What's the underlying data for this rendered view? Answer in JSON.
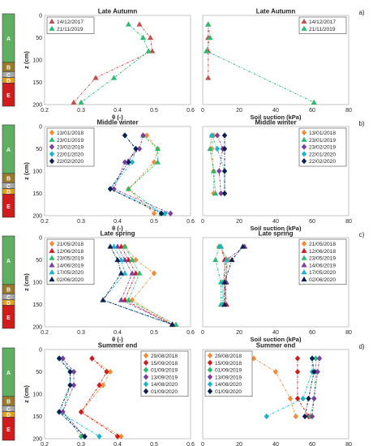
{
  "figure": {
    "soil_columns": [
      {
        "label": "A",
        "color": "#5fae62"
      },
      {
        "label": "B",
        "color": "#9a7a2a"
      },
      {
        "label": "C",
        "color": "#a8a8a8"
      },
      {
        "label": "D",
        "color": "#e6a11a"
      },
      {
        "label": "E",
        "color": "#d01c1c"
      }
    ]
  },
  "chart_data": [
    {
      "type": "scatter",
      "panel": "a",
      "title": "Late Autumn",
      "xlabel": "θ (-)",
      "ylabel": "z (cm)",
      "xlim": [
        0.2,
        0.6
      ],
      "xticks": [
        "0.2",
        "0.3",
        "0.4",
        "0.5",
        "0.6"
      ],
      "ylim": [
        0,
        200
      ],
      "yticks": [
        "0",
        "50",
        "100",
        "150",
        "200"
      ],
      "grid": false,
      "legend": "top-left",
      "series": [
        {
          "name": "14/12/2017",
          "color": "#c0504d",
          "marker": "triangle",
          "x": [
            0.46,
            0.49,
            0.495,
            0.34,
            0.28
          ],
          "y": [
            20,
            50,
            80,
            140,
            195
          ]
        },
        {
          "name": "21/11/2019",
          "color": "#2eb872",
          "marker": "triangle",
          "x": [
            0.43,
            0.47,
            0.485,
            0.39,
            0.3
          ],
          "y": [
            20,
            50,
            80,
            140,
            195
          ]
        }
      ]
    },
    {
      "type": "scatter",
      "panel": "a",
      "title": "Late Autumn",
      "xlabel": "Soil suction (kPa)",
      "panel_label": "a)",
      "xlim": [
        0,
        80
      ],
      "xticks": [
        "0",
        "20",
        "40",
        "60",
        "80"
      ],
      "ylim": [
        0,
        200
      ],
      "grid": false,
      "legend": "top-right",
      "series": [
        {
          "name": "14/12/2017",
          "color": "#c0504d",
          "marker": "triangle",
          "x": [
            3,
            3,
            3,
            3
          ],
          "y": [
            20,
            50,
            80,
            140
          ]
        },
        {
          "name": "21/11/2019",
          "color": "#2eb872",
          "marker": "triangle",
          "x": [
            3,
            4,
            2,
            61
          ],
          "y": [
            20,
            50,
            80,
            195
          ]
        }
      ]
    },
    {
      "type": "scatter",
      "panel": "b",
      "title": "Middle winter",
      "xlabel": "θ (-)",
      "ylabel": "z (cm)",
      "xlim": [
        0.2,
        0.6
      ],
      "xticks": [
        "0.2",
        "0.3",
        "0.4",
        "0.5",
        "0.6"
      ],
      "ylim": [
        0,
        200
      ],
      "yticks": [
        "0",
        "50",
        "100",
        "150",
        "200"
      ],
      "grid": false,
      "legend": "top-left",
      "series": [
        {
          "name": "13/01/2018",
          "color": "#f08c3c",
          "marker": "diamond",
          "x": [
            0.48,
            0.51,
            0.5,
            0.43,
            0.5
          ],
          "y": [
            20,
            50,
            80,
            140,
            195
          ]
        },
        {
          "name": "23/01/2019",
          "color": "#2eb872",
          "marker": "triangle",
          "x": [
            0.47,
            0.51,
            0.51,
            0.43,
            0.52
          ],
          "y": [
            20,
            50,
            80,
            140,
            195
          ]
        },
        {
          "name": "23/02/2019",
          "color": "#7a3fa0",
          "marker": "diamond",
          "x": [
            0.47,
            0.46,
            0.42,
            0.39,
            0.545
          ],
          "y": [
            20,
            50,
            80,
            140,
            195
          ]
        },
        {
          "name": "22/01/2020",
          "color": "#1db3c9",
          "marker": "diamond",
          "x": [
            0.42,
            0.45,
            0.44,
            0.38,
            0.53
          ],
          "y": [
            20,
            50,
            80,
            140,
            195
          ]
        },
        {
          "name": "22/02/2020",
          "color": "#0f2050",
          "marker": "diamond",
          "x": [
            0.42,
            0.45,
            0.43,
            0.38,
            0.52
          ],
          "y": [
            20,
            50,
            80,
            140,
            195
          ]
        }
      ]
    },
    {
      "type": "scatter",
      "panel": "b",
      "title": "Middle winter",
      "xlabel": "Soil suction (kPa)",
      "panel_label": "b)",
      "xlim": [
        0,
        80
      ],
      "xticks": [
        "0",
        "20",
        "40",
        "60",
        "80"
      ],
      "ylim": [
        0,
        200
      ],
      "grid": false,
      "legend": "top-right",
      "series": [
        {
          "name": "13/01/2018",
          "color": "#f08c3c",
          "marker": "diamond",
          "x": [
            6,
            5,
            6,
            6
          ],
          "y": [
            20,
            50,
            100,
            150
          ]
        },
        {
          "name": "23/01/2019",
          "color": "#2eb872",
          "marker": "triangle",
          "x": [
            5,
            4,
            6,
            7
          ],
          "y": [
            20,
            50,
            100,
            150
          ]
        },
        {
          "name": "23/02/2019",
          "color": "#7a3fa0",
          "marker": "diamond",
          "x": [
            8,
            11,
            9,
            10
          ],
          "y": [
            20,
            50,
            100,
            150
          ]
        },
        {
          "name": "22/01/2020",
          "color": "#1db3c9",
          "marker": "diamond",
          "x": [
            5,
            8,
            12,
            12
          ],
          "y": [
            20,
            50,
            100,
            150
          ]
        },
        {
          "name": "22/02/2020",
          "color": "#0f2050",
          "marker": "diamond",
          "x": [
            12,
            12,
            12,
            12
          ],
          "y": [
            20,
            50,
            100,
            150
          ]
        }
      ]
    },
    {
      "type": "scatter",
      "panel": "c",
      "title": "Late spring",
      "xlabel": "θ (-)",
      "ylabel": "z (cm)",
      "xlim": [
        0.2,
        0.6
      ],
      "xticks": [
        "0.2",
        "0.3",
        "0.4",
        "0.5",
        "0.6"
      ],
      "ylim": [
        0,
        200
      ],
      "yticks": [
        "0",
        "50",
        "100",
        "150",
        "200"
      ],
      "grid": false,
      "legend": "top-left",
      "series": [
        {
          "name": "21/05/2018",
          "color": "#f08c3c",
          "marker": "diamond",
          "x": [
            0.42,
            0.45,
            0.5,
            0.44,
            0.55
          ],
          "y": [
            20,
            50,
            80,
            140,
            195
          ]
        },
        {
          "name": "12/06/2018",
          "color": "#d01c1c",
          "marker": "triangle",
          "x": [
            0.41,
            0.43,
            0.45,
            0.42,
            0.55
          ],
          "y": [
            20,
            50,
            80,
            140,
            195
          ]
        },
        {
          "name": "23/05/2019",
          "color": "#2eb872",
          "marker": "triangle",
          "x": [
            0.42,
            0.44,
            0.46,
            0.43,
            0.56
          ],
          "y": [
            20,
            50,
            80,
            140,
            195
          ]
        },
        {
          "name": "14/06/2019",
          "color": "#7a3fa0",
          "marker": "triangle",
          "x": [
            0.4,
            0.42,
            0.44,
            0.41,
            0.55
          ],
          "y": [
            20,
            50,
            80,
            140,
            195
          ]
        },
        {
          "name": "17/05/2020",
          "color": "#1db3c9",
          "marker": "triangle",
          "x": [
            0.39,
            0.41,
            0.42,
            0.36,
            0.55
          ],
          "y": [
            20,
            50,
            80,
            140,
            195
          ]
        },
        {
          "name": "02/06/2020",
          "color": "#0f2050",
          "marker": "triangle",
          "x": [
            0.38,
            0.4,
            0.41,
            0.36,
            0.55
          ],
          "y": [
            20,
            50,
            80,
            140,
            195
          ]
        }
      ]
    },
    {
      "type": "scatter",
      "panel": "c",
      "title": "Late spring",
      "xlabel": "Soil suction (kPa)",
      "panel_label": "c)",
      "xlim": [
        0,
        80
      ],
      "xticks": [
        "0",
        "20",
        "40",
        "60",
        "80"
      ],
      "ylim": [
        0,
        200
      ],
      "grid": false,
      "legend": "top-right",
      "series": [
        {
          "name": "21/05/2018",
          "color": "#f08c3c",
          "marker": "diamond",
          "x": [
            9,
            14,
            12,
            11
          ],
          "y": [
            20,
            50,
            100,
            150
          ]
        },
        {
          "name": "12/06/2018",
          "color": "#d01c1c",
          "marker": "triangle",
          "x": [
            10,
            12,
            12,
            13
          ],
          "y": [
            20,
            50,
            100,
            150
          ]
        },
        {
          "name": "23/05/2019",
          "color": "#2eb872",
          "marker": "triangle",
          "x": [
            9,
            7,
            10,
            10
          ],
          "y": [
            20,
            50,
            100,
            150
          ]
        },
        {
          "name": "14/06/2019",
          "color": "#7a3fa0",
          "marker": "triangle",
          "x": [
            23,
            13,
            13,
            12
          ],
          "y": [
            20,
            50,
            100,
            150
          ]
        },
        {
          "name": "17/05/2020",
          "color": "#1db3c9",
          "marker": "triangle",
          "x": [
            10,
            13,
            11,
            11
          ],
          "y": [
            20,
            50,
            100,
            150
          ]
        },
        {
          "name": "02/06/2020",
          "color": "#0f2050",
          "marker": "triangle",
          "x": [
            22,
            16,
            12,
            12
          ],
          "y": [
            20,
            50,
            100,
            150
          ]
        }
      ]
    },
    {
      "type": "scatter",
      "panel": "d",
      "title": "Summer end",
      "xlabel": "θ (-)",
      "ylabel": "z (cm)",
      "xlim": [
        0.2,
        0.6
      ],
      "xticks": [
        "0.2",
        "0.3",
        "0.4",
        "0.5",
        "0.6"
      ],
      "ylim": [
        0,
        200
      ],
      "yticks": [
        "0",
        "50",
        "100",
        "150",
        "200"
      ],
      "grid": false,
      "legend": "top-right",
      "series": [
        {
          "name": "29/08/2018",
          "color": "#f08c3c",
          "marker": "diamond",
          "x": [
            0.33,
            0.38,
            0.36,
            0.3,
            0.41
          ],
          "y": [
            20,
            50,
            80,
            140,
            195
          ]
        },
        {
          "name": "15/09/2018",
          "color": "#d01c1c",
          "marker": "diamond",
          "x": [
            0.33,
            0.37,
            0.35,
            0.3,
            0.4
          ],
          "y": [
            20,
            50,
            80,
            140,
            195
          ]
        },
        {
          "name": "01/09/2019",
          "color": "#2eb872",
          "marker": "diamond",
          "x": [
            0.25,
            0.27,
            0.27,
            0.25,
            0.3
          ],
          "y": [
            20,
            50,
            80,
            140,
            195
          ]
        },
        {
          "name": "13/09/2019",
          "color": "#7a3fa0",
          "marker": "diamond",
          "x": [
            0.25,
            0.28,
            0.28,
            0.25,
            0.31
          ],
          "y": [
            20,
            50,
            80,
            140,
            195
          ]
        },
        {
          "name": "14/08/2020",
          "color": "#1db3c9",
          "marker": "diamond",
          "x": [
            0.24,
            0.27,
            0.27,
            0.24,
            0.35
          ],
          "y": [
            20,
            50,
            80,
            140,
            195
          ]
        },
        {
          "name": "01/09/2020",
          "color": "#0f2050",
          "marker": "diamond",
          "x": [
            0.24,
            0.27,
            0.27,
            0.24,
            0.31
          ],
          "y": [
            20,
            50,
            80,
            140,
            195
          ]
        }
      ]
    },
    {
      "type": "scatter",
      "panel": "d",
      "title": "Summer end",
      "xlabel": "Soil suction (kPa)",
      "panel_label": "d)",
      "xlim": [
        0,
        80
      ],
      "xticks": [
        "0",
        "20",
        "40",
        "60",
        "80"
      ],
      "ylim": [
        0,
        200
      ],
      "grid": false,
      "legend": "top-left",
      "series": [
        {
          "name": "29/08/2018",
          "color": "#f08c3c",
          "marker": "diamond",
          "x": [
            28,
            40,
            48,
            51
          ],
          "y": [
            20,
            50,
            110,
            150
          ]
        },
        {
          "name": "15/09/2018",
          "color": "#d01c1c",
          "marker": "diamond",
          "x": [
            52,
            52,
            52,
            58
          ],
          "y": [
            20,
            50,
            110,
            150
          ]
        },
        {
          "name": "01/09/2019",
          "color": "#2eb872",
          "marker": "diamond",
          "x": [
            62,
            62,
            61,
            59
          ],
          "y": [
            20,
            50,
            110,
            150
          ]
        },
        {
          "name": "13/09/2019",
          "color": "#7a3fa0",
          "marker": "diamond",
          "x": [
            64,
            63,
            61,
            60
          ],
          "y": [
            20,
            50,
            110,
            150
          ]
        },
        {
          "name": "14/08/2020",
          "color": "#1db3c9",
          "marker": "diamond",
          "x": [
            60,
            60,
            55,
            35
          ],
          "y": [
            20,
            50,
            110,
            150
          ]
        },
        {
          "name": "01/09/2020",
          "color": "#0f2050",
          "marker": "diamond",
          "x": [
            60,
            61,
            58,
            56
          ],
          "y": [
            20,
            50,
            110,
            150
          ]
        }
      ]
    }
  ]
}
